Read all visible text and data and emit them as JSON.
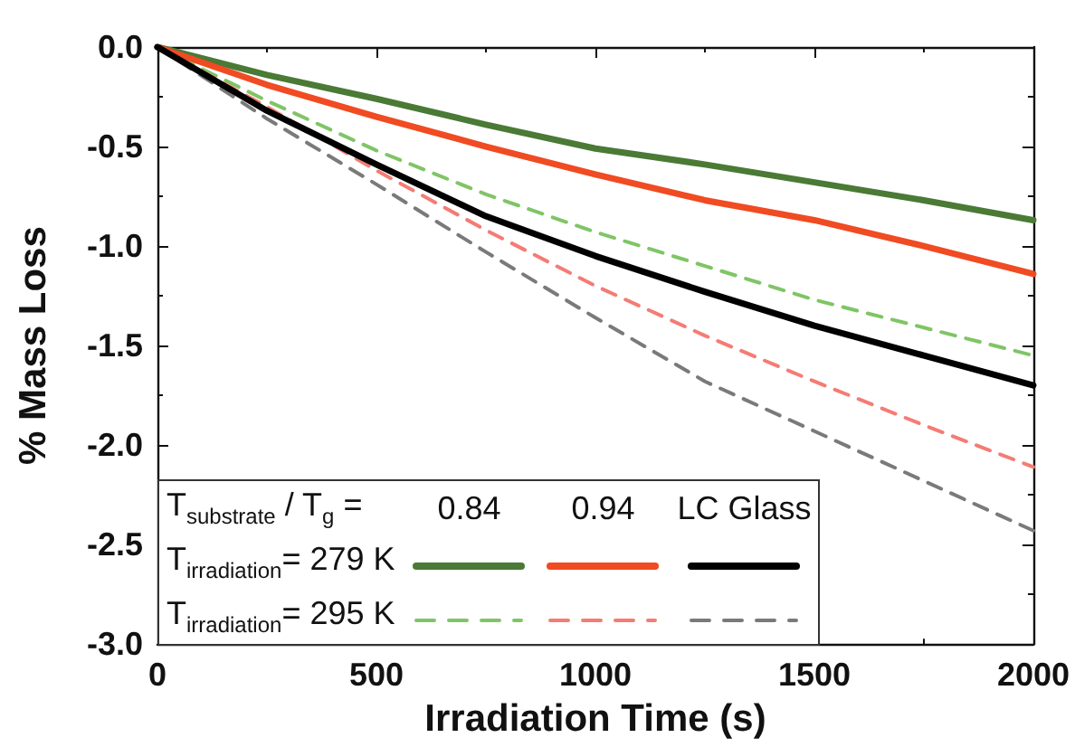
{
  "chart_data": {
    "type": "line",
    "xlabel": "Irradiation Time (s)",
    "ylabel": "% Mass Loss",
    "x": [
      0,
      250,
      500,
      750,
      1000,
      1250,
      1500,
      1750,
      2000
    ],
    "series": [
      {
        "color": "#4a7a35",
        "line_style": "solid",
        "values": [
          0,
          -0.14,
          -0.26,
          -0.39,
          -0.51,
          -0.59,
          -0.68,
          -0.77,
          -0.87
        ]
      },
      {
        "color": "#f04b22",
        "line_style": "solid",
        "values": [
          0,
          -0.19,
          -0.35,
          -0.5,
          -0.64,
          -0.77,
          -0.87,
          -1.0,
          -1.14
        ]
      },
      {
        "color": "#000000",
        "line_style": "solid",
        "values": [
          0,
          -0.32,
          -0.59,
          -0.85,
          -1.05,
          -1.23,
          -1.4,
          -1.55,
          -1.7
        ]
      },
      {
        "color": "#7fc566",
        "line_style": "dashed",
        "values": [
          0,
          -0.27,
          -0.52,
          -0.74,
          -0.93,
          -1.1,
          -1.27,
          -1.41,
          -1.55
        ]
      },
      {
        "color": "#f47c74",
        "line_style": "dashed",
        "values": [
          0,
          -0.3,
          -0.62,
          -0.92,
          -1.2,
          -1.45,
          -1.68,
          -1.9,
          -2.11
        ]
      },
      {
        "color": "#7a7a7a",
        "line_style": "dashed",
        "values": [
          0,
          -0.36,
          -0.69,
          -1.03,
          -1.36,
          -1.68,
          -1.93,
          -2.18,
          -2.43
        ]
      }
    ],
    "legend_title": "T$_{substrate}$ / T$_{g}$ =",
    "annotations": [
      "0.84",
      "0.94",
      "LC Glass",
      "T$_{irradiation}$= 279 K",
      "T$_{irradiation}$= 295 K"
    ],
    "marker": "none",
    "grid": false,
    "xlim": [
      0,
      2000
    ],
    "xticks": [
      0,
      500,
      1000,
      1500,
      2000
    ],
    "ylim": [
      -3,
      0
    ],
    "yticks": [
      {
        "value": -3,
        "label": "-3.0"
      },
      {
        "value": -2.5,
        "label": "-2.5"
      },
      {
        "value": -2,
        "label": "-2.0"
      },
      {
        "value": -1.5,
        "label": "-1.5"
      },
      {
        "value": -1,
        "label": "-1.0"
      },
      {
        "value": -0.5,
        "label": "-0.5"
      },
      {
        "value": 0,
        "label": "0.0"
      }
    ]
  }
}
